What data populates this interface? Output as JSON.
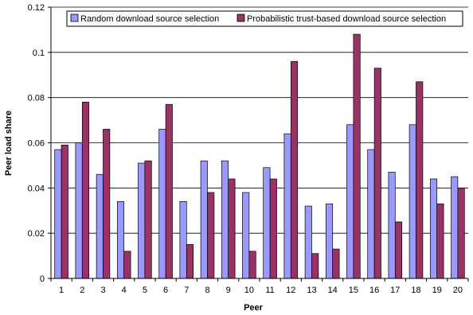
{
  "chart_data": {
    "type": "bar",
    "xlabel": "Peer",
    "ylabel": "Peer load share",
    "ylim": [
      0,
      0.12
    ],
    "yticks": [
      0,
      0.02,
      0.04,
      0.06,
      0.08,
      0.1,
      0.12
    ],
    "ytick_labels": [
      "0",
      "0.02",
      "0.04",
      "0.06",
      "0.08",
      "0.1",
      "0.12"
    ],
    "grid": true,
    "legend_position": "top",
    "categories": [
      "1",
      "2",
      "3",
      "4",
      "5",
      "6",
      "7",
      "8",
      "9",
      "10",
      "11",
      "12",
      "13",
      "14",
      "15",
      "16",
      "17",
      "18",
      "19",
      "20"
    ],
    "series": [
      {
        "name": "Random download source selection",
        "color": "#9999ff",
        "values": [
          0.057,
          0.06,
          0.046,
          0.034,
          0.051,
          0.066,
          0.034,
          0.052,
          0.052,
          0.038,
          0.049,
          0.064,
          0.032,
          0.033,
          0.068,
          0.057,
          0.047,
          0.068,
          0.044,
          0.045
        ]
      },
      {
        "name": "Probabilistic trust-based download source selection",
        "color": "#993366",
        "values": [
          0.059,
          0.078,
          0.066,
          0.012,
          0.052,
          0.077,
          0.015,
          0.038,
          0.044,
          0.012,
          0.044,
          0.096,
          0.011,
          0.013,
          0.108,
          0.093,
          0.025,
          0.087,
          0.033,
          0.04
        ]
      }
    ]
  }
}
